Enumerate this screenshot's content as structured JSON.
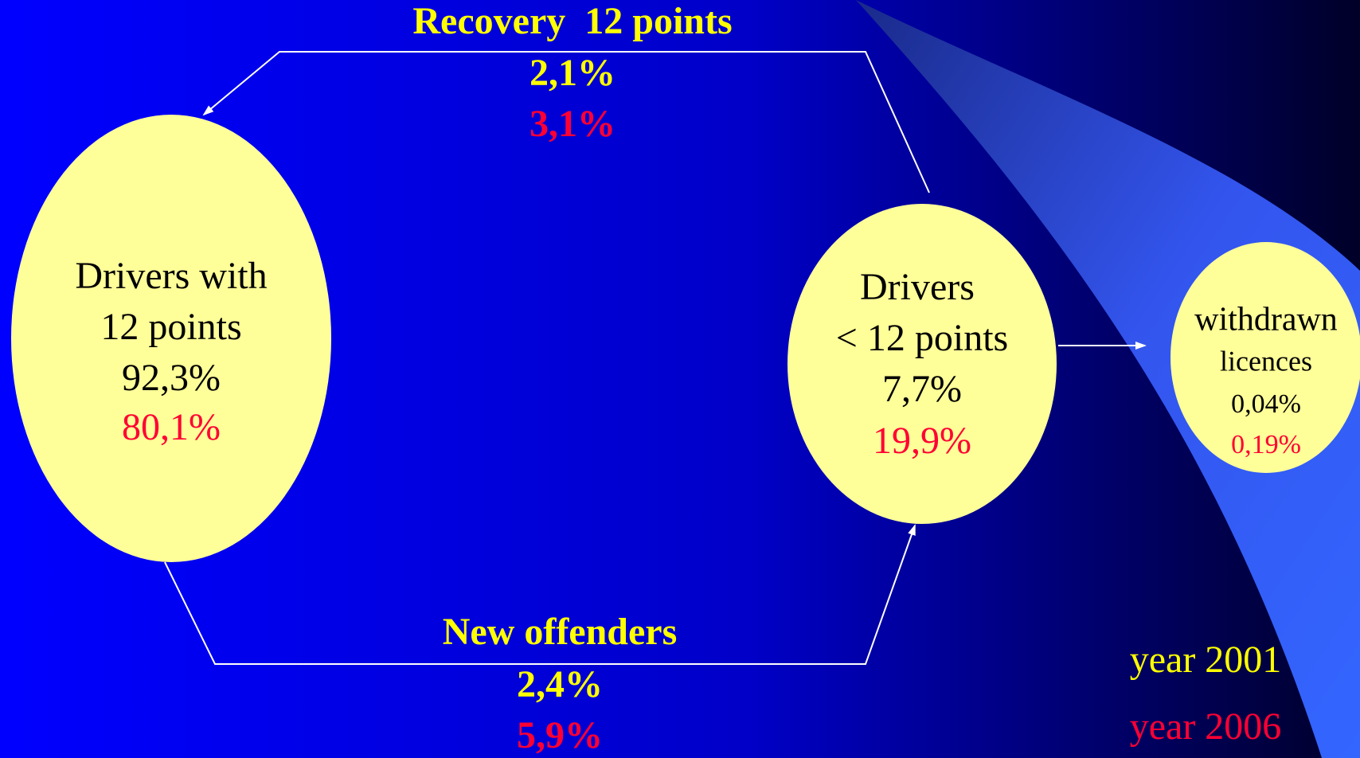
{
  "nodes": [
    {
      "label": [
        "Drivers with",
        "12 points"
      ],
      "value_2001": "92,3%",
      "value_2006": "80,1%"
    },
    {
      "label": [
        "Drivers",
        "< 12 points"
      ],
      "value_2001": "7,7%",
      "value_2006": "19,9%"
    },
    {
      "label": [
        "withdrawn",
        "licences"
      ],
      "value_2001": "0,04%",
      "value_2006": "0,19%"
    }
  ],
  "edges": [
    {
      "label": "Recovery  12 points",
      "value_2001": "2,1%",
      "value_2006": "3,1%"
    },
    {
      "label": "New offenders",
      "value_2001": "2,4%",
      "value_2006": "5,9%"
    }
  ],
  "legend": [
    "year 2001",
    "year 2006"
  ]
}
